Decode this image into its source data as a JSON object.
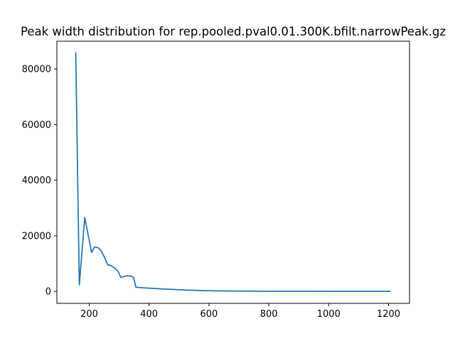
{
  "chart_data": {
    "type": "line",
    "title": "Peak width distribution for rep.pooled.pval0.01.300K.bfilt.narrowPeak.gz",
    "xlabel": "",
    "ylabel": "",
    "xlim": [
      92,
      1270
    ],
    "ylim": [
      -4300,
      90000
    ],
    "grid": false,
    "line_color": "#1f77b4",
    "x_ticks": [
      {
        "value": 200,
        "label": "200"
      },
      {
        "value": 400,
        "label": "400"
      },
      {
        "value": 600,
        "label": "600"
      },
      {
        "value": 800,
        "label": "800"
      },
      {
        "value": 1000,
        "label": "1000"
      },
      {
        "value": 1200,
        "label": "1200"
      }
    ],
    "y_ticks": [
      {
        "value": 0,
        "label": "0"
      },
      {
        "value": 20000,
        "label": "20000"
      },
      {
        "value": 40000,
        "label": "40000"
      },
      {
        "value": 60000,
        "label": "60000"
      },
      {
        "value": 80000,
        "label": "80000"
      }
    ],
    "series": [
      {
        "x": [
          155,
          167,
          185,
          208,
          218,
          230,
          240,
          250,
          262,
          272,
          285,
          296,
          306,
          317,
          328,
          340,
          348,
          356,
          380,
          400,
          420,
          440,
          460,
          480,
          500,
          520,
          540,
          560,
          580,
          600,
          640,
          680,
          720,
          760,
          800,
          850,
          900,
          950,
          1000,
          1050,
          1100,
          1150,
          1205
        ],
        "y": [
          85800,
          2300,
          26600,
          14000,
          16000,
          15700,
          14600,
          12500,
          9600,
          9300,
          8400,
          7300,
          5000,
          5400,
          5600,
          5500,
          5000,
          1500,
          1300,
          1150,
          1050,
          900,
          800,
          700,
          600,
          500,
          420,
          350,
          300,
          250,
          180,
          130,
          100,
          80,
          60,
          45,
          35,
          28,
          22,
          18,
          15,
          12,
          10
        ]
      }
    ]
  }
}
